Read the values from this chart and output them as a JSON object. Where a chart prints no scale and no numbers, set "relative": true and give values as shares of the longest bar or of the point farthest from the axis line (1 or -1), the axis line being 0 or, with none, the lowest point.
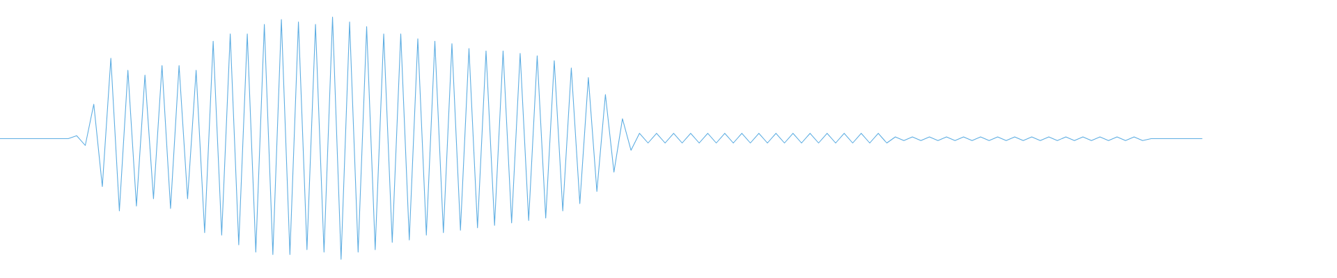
{
  "chart_data": {
    "type": "line",
    "relative": true,
    "categories": [
      null,
      null,
      null,
      null,
      null,
      null,
      null,
      null,
      null,
      null,
      null,
      null,
      null,
      null,
      null,
      null,
      null,
      null,
      null,
      null,
      null,
      null,
      null,
      null,
      null,
      null,
      null,
      null,
      null,
      null,
      null,
      null,
      null,
      null,
      null,
      null,
      null,
      null,
      null,
      null,
      null,
      null,
      null,
      null,
      null,
      null,
      null,
      null,
      null,
      null,
      null,
      null,
      null,
      null,
      null,
      null,
      null,
      null,
      null,
      null,
      null,
      null,
      null,
      null,
      null,
      null,
      null,
      null,
      null,
      null,
      null,
      null,
      null,
      null,
      null,
      null,
      null,
      null,
      null,
      null,
      null,
      null,
      null,
      null,
      null,
      null,
      null,
      null,
      null,
      null,
      null,
      null,
      null,
      null,
      null,
      null,
      null,
      null,
      null,
      null,
      null,
      null,
      null,
      null,
      null,
      null,
      null,
      null,
      null,
      null,
      null,
      null,
      null,
      null,
      null,
      null,
      null,
      null,
      null,
      null,
      null,
      null,
      null,
      null,
      null,
      null,
      null,
      null,
      null,
      null,
      null,
      null,
      null,
      null,
      null,
      null,
      null,
      null,
      null,
      null,
      null,
      null
    ],
    "series": [
      {
        "color": "#5dade2",
        "values": [
          0.498,
          0.498,
          0.498,
          0.498,
          0.498,
          0.498,
          0.498,
          0.498,
          0.498,
          0.51,
          0.47,
          0.64,
          0.3,
          0.83,
          0.2,
          0.78,
          0.22,
          0.76,
          0.25,
          0.8,
          0.21,
          0.8,
          0.25,
          0.78,
          0.11,
          0.9,
          0.1,
          0.93,
          0.06,
          0.93,
          0.03,
          0.97,
          0.02,
          0.99,
          0.02,
          0.98,
          0.04,
          0.97,
          0.03,
          1,
          0,
          0.98,
          0.03,
          0.96,
          0.04,
          0.93,
          0.07,
          0.93,
          0.08,
          0.91,
          0.1,
          0.9,
          0.11,
          0.89,
          0.12,
          0.87,
          0.13,
          0.86,
          0.14,
          0.86,
          0.15,
          0.85,
          0.16,
          0.84,
          0.17,
          0.82,
          0.2,
          0.79,
          0.23,
          0.75,
          0.28,
          0.68,
          0.36,
          0.58,
          0.45,
          0.52,
          0.48,
          0.52,
          0.48,
          0.52,
          0.48,
          0.52,
          0.48,
          0.52,
          0.48,
          0.52,
          0.48,
          0.52,
          0.48,
          0.52,
          0.48,
          0.52,
          0.48,
          0.52,
          0.48,
          0.52,
          0.48,
          0.52,
          0.48,
          0.52,
          0.48,
          0.52,
          0.48,
          0.52,
          0.48,
          0.505,
          0.49,
          0.505,
          0.49,
          0.505,
          0.49,
          0.505,
          0.49,
          0.505,
          0.49,
          0.505,
          0.49,
          0.505,
          0.49,
          0.505,
          0.49,
          0.505,
          0.49,
          0.505,
          0.49,
          0.505,
          0.49,
          0.505,
          0.49,
          0.505,
          0.49,
          0.505,
          0.49,
          0.505,
          0.49,
          0.498,
          0.498,
          0.498,
          0.498,
          0.498,
          0.498,
          0.498
        ]
      }
    ]
  }
}
